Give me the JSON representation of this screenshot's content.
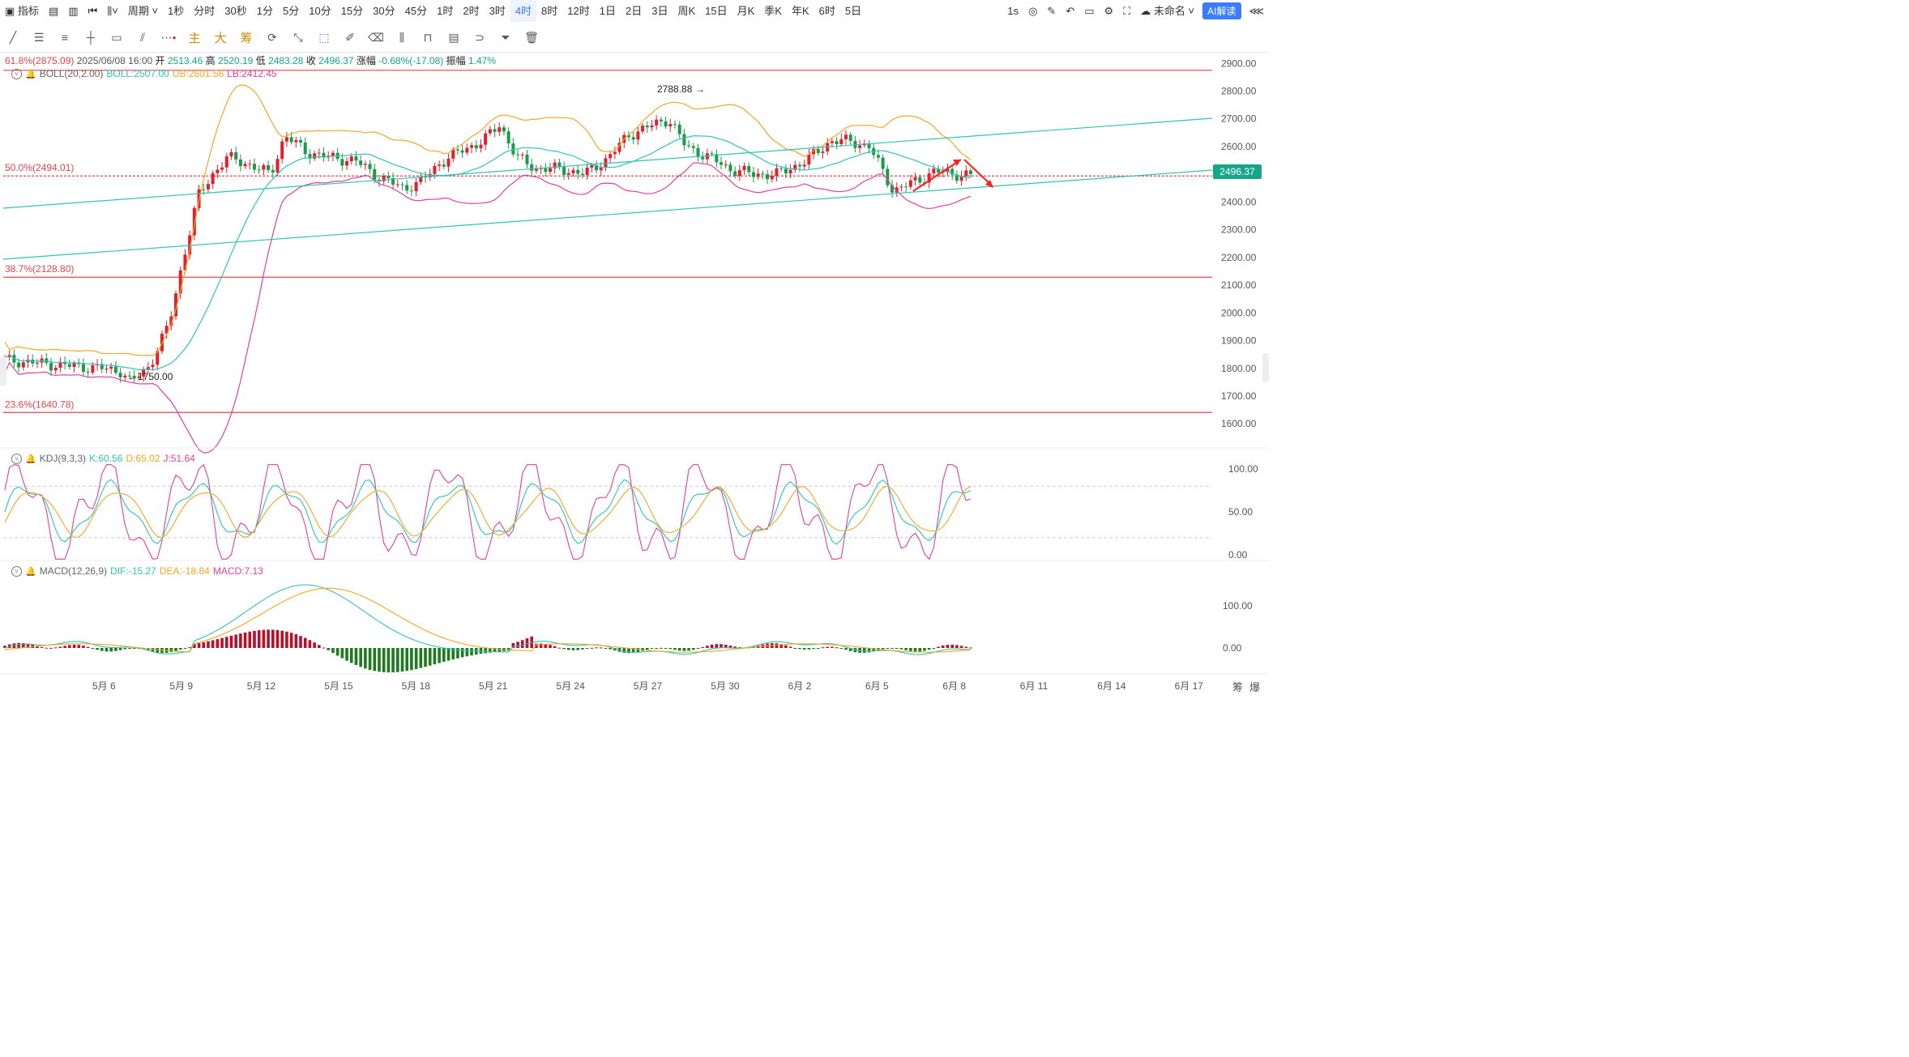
{
  "toolbar": {
    "indicator_label": "指标",
    "period_label": "周期",
    "intervals": [
      "1秒",
      "分时",
      "30秒",
      "1分",
      "5分",
      "10分",
      "15分",
      "30分",
      "45分",
      "1时",
      "2时",
      "3时",
      "4时",
      "8时",
      "12时",
      "1日",
      "2日",
      "3日",
      "周K",
      "15日",
      "月K",
      "季K",
      "年K",
      "6时",
      "5日"
    ],
    "active_interval": "4时",
    "refresh": "1s",
    "cloud_name": "未命名",
    "ai_button": "AI解读"
  },
  "drawbar": {
    "main_label": "主",
    "big_label": "大",
    "chip_label": "筹"
  },
  "main_panel": {
    "info": {
      "fib_top": "61.8%(2875.09)",
      "date": "2025/06/08 16:00",
      "open_label": "开",
      "open": "2513.46",
      "high_label": "高",
      "high": "2520.19",
      "low_label": "低",
      "low": "2483.28",
      "close_label": "收",
      "close": "2496.37",
      "change_label": "涨幅",
      "change": "-0.68%(-17.08)",
      "amp_label": "振幅",
      "amp": "1.47%"
    },
    "boll": {
      "name": "BOLL(20,2.00)",
      "mid": "BOLL:2507.00",
      "ub": "UB:2601.56",
      "lb": "LB:2412.45"
    },
    "fib_levels": [
      {
        "label": "61.8%(2875.09)",
        "price": 2875.09
      },
      {
        "label": "50.0%(2494.01)",
        "price": 2494.01
      },
      {
        "label": "38.7%(2128.80)",
        "price": 2128.8
      },
      {
        "label": "23.6%(1640.78)",
        "price": 1640.78
      }
    ],
    "price_axis": [
      "2900.00",
      "2800.00",
      "2700.00",
      "2600.00",
      "2500.00",
      "2400.00",
      "2300.00",
      "2200.00",
      "2100.00",
      "2000.00",
      "1900.00",
      "1800.00",
      "1700.00",
      "1600.00"
    ],
    "last_price": "2496.37",
    "high_marker": "2788.88",
    "low_marker": "1750.00"
  },
  "kdj": {
    "name": "KDJ(9,3,3)",
    "k": "K:60.56",
    "d": "D:65.02",
    "j": "J:51.64",
    "axis": [
      "100.00",
      "50.00",
      "0.00"
    ]
  },
  "macd": {
    "name": "MACD(12,26,9)",
    "dif": "DIF:-15.27",
    "dea": "DEA:-18.84",
    "macd": "MACD:7.13",
    "axis": [
      "100.00",
      "0.00"
    ]
  },
  "x_axis": [
    "5月 6",
    "5月 9",
    "5月 12",
    "5月 15",
    "5月 18",
    "5月 21",
    "5月 24",
    "5月 27",
    "5月 30",
    "6月 2",
    "6月 5",
    "6月 8",
    "6月 11",
    "6月 14",
    "6月 17"
  ],
  "corner_labels": [
    "筹",
    "爆"
  ],
  "colors": {
    "up": "#e0202e",
    "down": "#1a9a4a",
    "boll_mid": "#2ec4b6",
    "boll_ub": "#f5a623",
    "boll_lb": "#e040a0",
    "fib": "#e8434b",
    "trend": "#2ec4b6",
    "accent": "#3a7bff"
  }
}
